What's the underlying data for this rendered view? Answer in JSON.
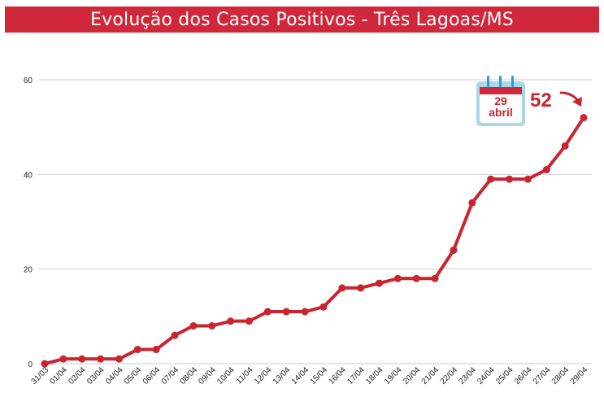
{
  "title": "Evolução dos Casos Positivos - Três Lagoas/MS",
  "colors": {
    "title_bg": "#d0283a",
    "line": "#c8252f",
    "calendar_frame": "#9fd3e3",
    "calendar_rings": "#2a9fd6"
  },
  "callout": {
    "day": "29",
    "month": "abril",
    "value": "52",
    "icon": "calendar-icon",
    "arrow_icon": "curved-arrow-icon"
  },
  "chart_data": {
    "type": "line",
    "title": "Evolução dos Casos Positivos - Três Lagoas/MS",
    "xlabel": "",
    "ylabel": "",
    "ylim": [
      0,
      60
    ],
    "yticks": [
      0,
      20,
      40,
      60
    ],
    "grid": true,
    "categories": [
      "31/03",
      "01/04",
      "02/04",
      "03/04",
      "04/04",
      "05/04",
      "06/04",
      "07/04",
      "08/04",
      "09/04",
      "10/04",
      "11/04",
      "12/04",
      "13/04",
      "14/04",
      "15/04",
      "16/04",
      "17/04",
      "18/04",
      "19/04",
      "20/04",
      "21/04",
      "22/04",
      "23/04",
      "24/04",
      "25/04",
      "26/04",
      "27/04",
      "28/04",
      "29/04"
    ],
    "series": [
      {
        "values": [
          0,
          1,
          1,
          1,
          1,
          3,
          3,
          6,
          8,
          8,
          9,
          9,
          11,
          11,
          11,
          12,
          16,
          16,
          17,
          18,
          18,
          18,
          24,
          34,
          39,
          39,
          39,
          41,
          46,
          52
        ]
      }
    ]
  }
}
